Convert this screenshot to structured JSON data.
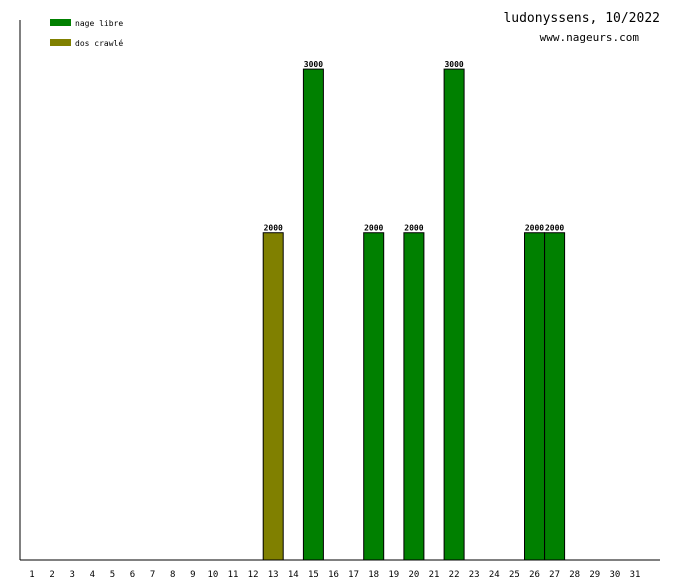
{
  "header": {
    "title": "ludonyssens, 10/2022",
    "site": "www.nageurs.com"
  },
  "chart_data": {
    "type": "bar",
    "title": "ludonyssens, 10/2022",
    "xlabel": "",
    "ylabel": "",
    "ylim": [
      0,
      3300
    ],
    "grid": false,
    "legend_position": "top-left",
    "categories": [
      "1",
      "2",
      "3",
      "4",
      "5",
      "6",
      "7",
      "8",
      "9",
      "10",
      "11",
      "12",
      "13",
      "14",
      "15",
      "16",
      "17",
      "18",
      "19",
      "20",
      "21",
      "22",
      "23",
      "24",
      "25",
      "26",
      "27",
      "28",
      "29",
      "30",
      "31"
    ],
    "series": [
      {
        "name": "nage libre",
        "color": "#008000",
        "points": [
          {
            "day": 15,
            "value": 3000
          },
          {
            "day": 18,
            "value": 2000
          },
          {
            "day": 20,
            "value": 2000
          },
          {
            "day": 22,
            "value": 3000
          },
          {
            "day": 26,
            "value": 2000
          },
          {
            "day": 27,
            "value": 2000
          }
        ]
      },
      {
        "name": "dos crawlé",
        "color": "#808000",
        "points": [
          {
            "day": 13,
            "value": 2000
          }
        ]
      }
    ]
  }
}
